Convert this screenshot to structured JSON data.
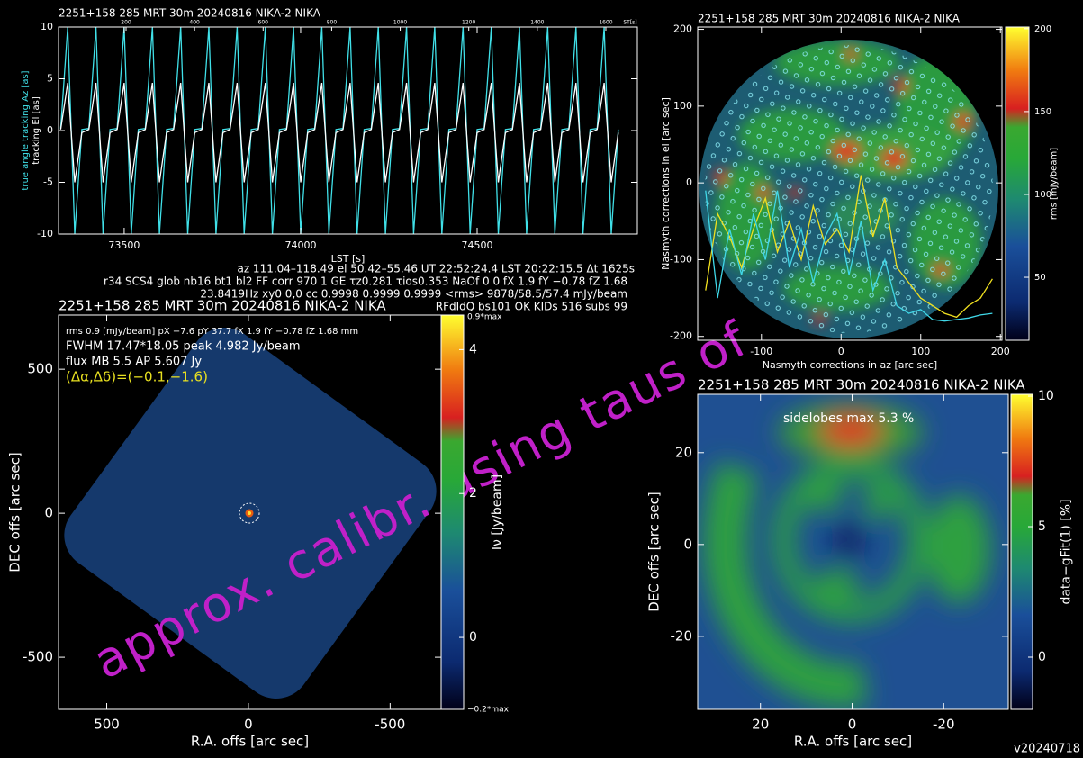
{
  "chart_data": [
    {
      "type": "line",
      "title": "2251+158 285 MRT 30m  20240816 NIKA-2 NIKA",
      "xlabel": "LST [s]",
      "xlim": [
        73314,
        74954
      ],
      "xticks": [
        73500,
        74000,
        74500
      ],
      "ylim": [
        -10,
        10
      ],
      "yticks": [
        -10,
        -5,
        0,
        5,
        10
      ],
      "x2lim": [
        3,
        1692
      ],
      "x2ticks": [
        200,
        400,
        600,
        800,
        1000,
        1200,
        1400,
        1600
      ],
      "x2label": "ST[s]",
      "x": [
        73320,
        73340,
        73360,
        73380,
        73400,
        73420,
        73440,
        73460,
        73480,
        73500,
        73520,
        73540,
        73560,
        73580,
        73600,
        73620,
        73640,
        73660,
        73680,
        73700,
        73720,
        73740,
        73760,
        73780,
        73800,
        73820,
        73840,
        73860,
        73880,
        73900,
        73920,
        73940,
        73960,
        73980,
        74000,
        74020,
        74040,
        74060,
        74080,
        74100,
        74120,
        74140,
        74160,
        74180,
        74200,
        74220,
        74240,
        74260,
        74280,
        74300,
        74320,
        74340,
        74360,
        74380,
        74400,
        74420,
        74440,
        74460,
        74480,
        74500,
        74520,
        74540,
        74560,
        74580,
        74600,
        74620,
        74640,
        74660,
        74680,
        74700,
        74720,
        74740,
        74760,
        74780,
        74800,
        74820,
        74840,
        74860,
        74880,
        74900
      ],
      "series": [
        {
          "name": "true angle tracking Az [as]",
          "color": "#40e0e8",
          "values": [
            0.2,
            10,
            -10,
            0.1,
            0.2,
            10,
            -10,
            0.1,
            0.2,
            10,
            -10,
            0.1,
            0.2,
            10,
            -10,
            0.1,
            0.2,
            10,
            -10,
            0.1,
            0.2,
            10,
            -10,
            0.1,
            0.2,
            10,
            -10,
            0.1,
            0.2,
            10,
            -10,
            0.1,
            0.2,
            10,
            -10,
            0.1,
            0.2,
            10,
            -10,
            0.1,
            0.2,
            10,
            -10,
            0.1,
            0.2,
            10,
            -10,
            0.1,
            0.2,
            10,
            -10,
            0.1,
            0.2,
            10,
            -10,
            0.1,
            0.2,
            10,
            -10,
            0.1,
            0.2,
            10,
            -10,
            0.1,
            0.2,
            10,
            -10,
            0.1,
            0.2,
            10,
            -10,
            0.1,
            0.2,
            10,
            -10,
            0.1,
            0.2,
            10,
            -10,
            0.1
          ]
        },
        {
          "name": "tracking El [as]",
          "color": "#ffffff",
          "values": [
            0.1,
            4.6,
            -5,
            -0.2,
            0.1,
            4.6,
            -5,
            -0.2,
            0.1,
            4.6,
            -5,
            -0.2,
            0.1,
            4.6,
            -5,
            -0.2,
            0.1,
            4.6,
            -5,
            -0.2,
            0.1,
            4.6,
            -5,
            -0.2,
            0.1,
            4.6,
            -5,
            -0.2,
            0.1,
            4.6,
            -5,
            -0.2,
            0.1,
            4.6,
            -5,
            -0.2,
            0.1,
            4.6,
            -5,
            -0.2,
            0.1,
            4.6,
            -5,
            -0.2,
            0.1,
            4.6,
            -5,
            -0.2,
            0.1,
            4.6,
            -5,
            -0.2,
            0.1,
            4.6,
            -5,
            -0.2,
            0.1,
            4.6,
            -5,
            -0.2,
            0.1,
            4.6,
            -5,
            -0.2,
            0.1,
            4.6,
            -5,
            -0.2,
            0.1,
            4.6,
            -5,
            -0.2,
            0.1,
            4.6,
            -5,
            -0.2,
            0.1,
            4.6,
            -5,
            -0.2
          ]
        }
      ]
    },
    {
      "type": "heatmap",
      "title": "2251+158 285 MRT 30m  20240816 NIKA-2 NIKA",
      "xlabel": "Nasmyth corrections in az [arc sec]",
      "ylabel": "Nasmyth corrections in el [arc sec]",
      "xlim": [
        -180,
        202
      ],
      "xticks": [
        -100,
        0,
        100,
        200
      ],
      "ylim": [
        -205,
        203
      ],
      "yticks": [
        -200,
        -100,
        0,
        100,
        200
      ],
      "clim": [
        12,
        201
      ],
      "cticks": [
        50,
        100,
        150,
        200
      ],
      "clabel": "rms [mJy/beam]",
      "x": [
        -170,
        -155,
        -140,
        -125,
        -110,
        -95,
        -80,
        -65,
        -50,
        -35,
        -20,
        -5,
        10,
        25,
        40,
        55,
        70,
        85,
        100,
        115,
        130,
        145,
        160,
        175,
        190
      ],
      "series": [
        {
          "color": "#f0e020",
          "values": [
            -140,
            -40,
            -70,
            -110,
            -60,
            -20,
            -90,
            -50,
            -100,
            -30,
            -80,
            -60,
            -90,
            10,
            -70,
            -20,
            -110,
            -130,
            -150,
            -160,
            -170,
            -175,
            -160,
            -150,
            -125
          ]
        },
        {
          "color": "#40d8e8",
          "values": [
            -10,
            -150,
            -60,
            -120,
            -40,
            -100,
            -10,
            -110,
            -60,
            -130,
            -70,
            -40,
            -120,
            -50,
            -140,
            -100,
            -160,
            -170,
            -165,
            -178,
            -180,
            -178,
            -176,
            -172,
            -170
          ]
        }
      ]
    },
    {
      "type": "heatmap",
      "title": "2251+158 285 MRT 30m  20240816 NIKA-2 NIKA",
      "xlabel": "R.A. offs [arc sec]",
      "ylabel": "DEC offs [arc sec]",
      "xlim": [
        670,
        -680
      ],
      "xticks": [
        500,
        0,
        -500
      ],
      "ylim": [
        -681,
        688
      ],
      "yticks": [
        -500,
        0,
        500
      ],
      "clim": [
        -1.0,
        4.48
      ],
      "cticks": [
        0,
        2,
        4
      ],
      "clabel": "Iν [Jy/beam]",
      "cmax_label": "0.9*max",
      "cmin_label": "−0.2*max",
      "annotations": [
        {
          "text": "rms 0.9 [mJy/beam] pX −7.6 pY 37.7 fX 1.9 fY −0.78 fZ 1.68 mm",
          "color": "#ffffff"
        },
        {
          "text": "FWHM 17.47*18.05 peak 4.982 Jy/beam",
          "color": "#ffffff"
        },
        {
          "text": "flux MB 5.5 AP 5.607 Jy",
          "color": "#ffffff"
        },
        {
          "text": "(Δα,Δδ)=(−0.1,−1.6)",
          "color": "#e8e020"
        }
      ]
    },
    {
      "type": "heatmap",
      "title": "2251+158 285 MRT 30m  20240816 NIKA-2 NIKA",
      "xlabel": "R.A. offs [arc sec]",
      "ylabel": "DEC offs [arc sec]",
      "xlim": [
        33.7,
        -34.1
      ],
      "xticks": [
        20,
        0,
        -20
      ],
      "ylim": [
        -35.9,
        32.7
      ],
      "yticks": [
        -20,
        0,
        20
      ],
      "clim": [
        -2.0,
        10.07
      ],
      "cticks": [
        0,
        5,
        10
      ],
      "clabel": "data−gFit(1) [%]",
      "annotations": [
        {
          "text": "sidelobes max 5.3 %",
          "color": "#ffffff"
        }
      ]
    }
  ],
  "info_lines": [
    "az 111.04–118.49 el 50.42–55.46 UT 22:52:24.4 LST 20:22:15.5 Δt 1625s",
    "r34 SCS4 glob nb16 bt1 bl2 FF corr 970 1 GE τz0.281 τios0.353 NaOf 0 0 fX 1.9 fY −0.78 fZ 1.68",
    "23.8419Hz xy0 0,0 cc 0.9998 0.9999 0.9999 <rms> 9878/58.5/57.4 mJy/beam",
    "RFdIdQ bs101 OK KIDs 516 subs 99"
  ],
  "watermark": "approx. calibr. using taus of",
  "version": "v20240718"
}
